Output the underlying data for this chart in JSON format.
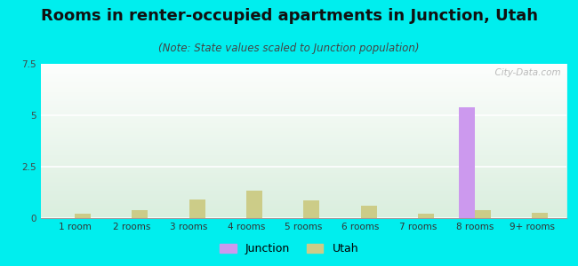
{
  "title": "Rooms in renter-occupied apartments in Junction, Utah",
  "subtitle": "(Note: State values scaled to Junction population)",
  "categories": [
    "1 room",
    "2 rooms",
    "3 rooms",
    "4 rooms",
    "5 rooms",
    "6 rooms",
    "7 rooms",
    "8 rooms",
    "9+ rooms"
  ],
  "junction_values": [
    0,
    0,
    0,
    0,
    0,
    0,
    0,
    5.4,
    0
  ],
  "utah_values": [
    0.22,
    0.38,
    0.9,
    1.35,
    0.85,
    0.6,
    0.22,
    0.38,
    0.25
  ],
  "junction_color": "#cc99ee",
  "utah_color": "#cccc88",
  "background_color": "#00eeee",
  "plot_bg_color": "#f0f8ee",
  "ylim": [
    0,
    7.5
  ],
  "yticks": [
    0,
    2.5,
    5,
    7.5
  ],
  "bar_width": 0.28,
  "title_fontsize": 13,
  "subtitle_fontsize": 8.5,
  "tick_fontsize": 7.5,
  "watermark": "  City-Data.com"
}
